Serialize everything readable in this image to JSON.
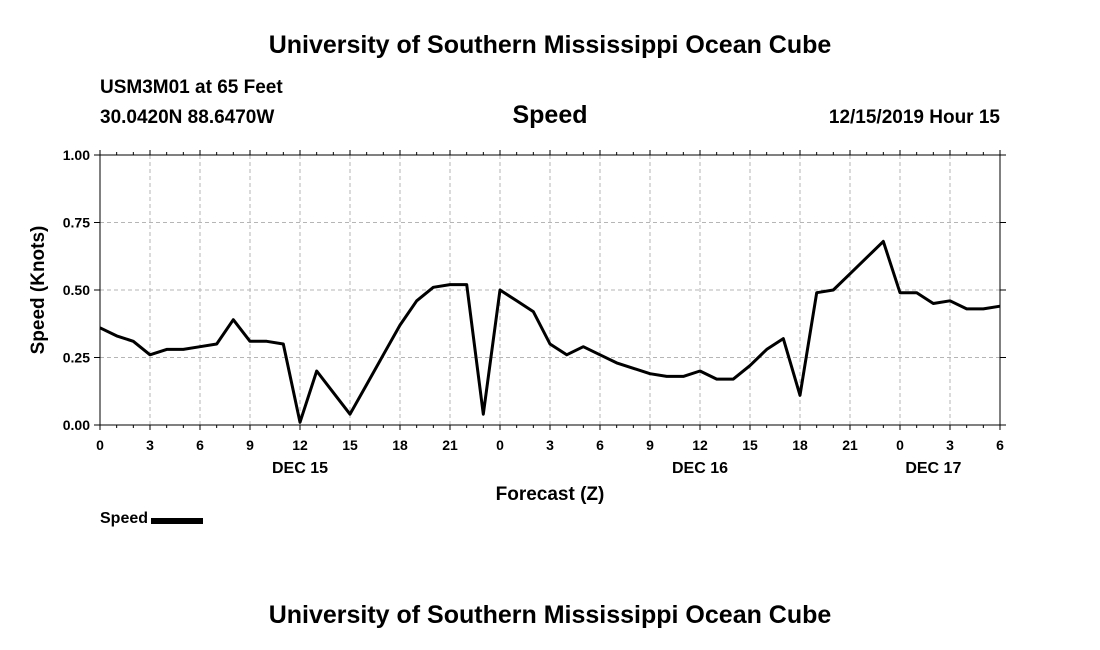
{
  "page": {
    "title_top": "University of Southern Mississippi Ocean Cube",
    "title_bottom": "University of Southern Mississippi Ocean Cube",
    "station": "USM3M01 at 65 Feet",
    "coordinates": "30.0420N 88.6470W",
    "variable": "Speed",
    "datetime": "12/15/2019 Hour 15"
  },
  "chart_data": {
    "type": "line",
    "title": "Speed",
    "xlabel": "Forecast (Z)",
    "ylabel": "Speed (Knots)",
    "ylim": [
      0,
      1
    ],
    "yticks": [
      "0.00",
      "0.25",
      "0.50",
      "0.75",
      "1.00"
    ],
    "x_range_hours": [
      0,
      54
    ],
    "x_ticks": [
      "0",
      "3",
      "6",
      "9",
      "12",
      "15",
      "18",
      "21",
      "0",
      "3",
      "6",
      "9",
      "12",
      "15",
      "18",
      "21",
      "0",
      "3",
      "6"
    ],
    "date_labels": [
      {
        "label": "DEC 15",
        "hour": 12
      },
      {
        "label": "DEC 16",
        "hour": 36
      },
      {
        "label": "DEC 17",
        "hour": 50
      }
    ],
    "grid": true,
    "legend": "bottom-left",
    "series": [
      {
        "name": "Speed",
        "color": "#000000",
        "x": [
          0,
          1,
          2,
          3,
          4,
          5,
          6,
          7,
          8,
          9,
          10,
          11,
          12,
          13,
          14,
          15,
          16,
          17,
          18,
          19,
          20,
          21,
          22,
          23,
          24,
          25,
          26,
          27,
          28,
          29,
          30,
          31,
          32,
          33,
          34,
          35,
          36,
          37,
          38,
          39,
          40,
          41,
          42,
          43,
          44,
          45,
          46,
          47,
          48,
          49,
          50,
          51,
          52,
          53,
          54
        ],
        "values": [
          0.36,
          0.33,
          0.31,
          0.26,
          0.28,
          0.28,
          0.29,
          0.3,
          0.39,
          0.31,
          0.31,
          0.3,
          0.01,
          0.2,
          0.12,
          0.04,
          0.15,
          0.26,
          0.37,
          0.46,
          0.51,
          0.52,
          0.52,
          0.04,
          0.5,
          0.46,
          0.42,
          0.3,
          0.26,
          0.29,
          0.26,
          0.23,
          0.21,
          0.19,
          0.18,
          0.18,
          0.2,
          0.17,
          0.17,
          0.22,
          0.28,
          0.32,
          0.11,
          0.49,
          0.5,
          0.56,
          0.62,
          0.68,
          0.49,
          0.49,
          0.45,
          0.46,
          0.43,
          0.43,
          0.44
        ]
      }
    ]
  }
}
